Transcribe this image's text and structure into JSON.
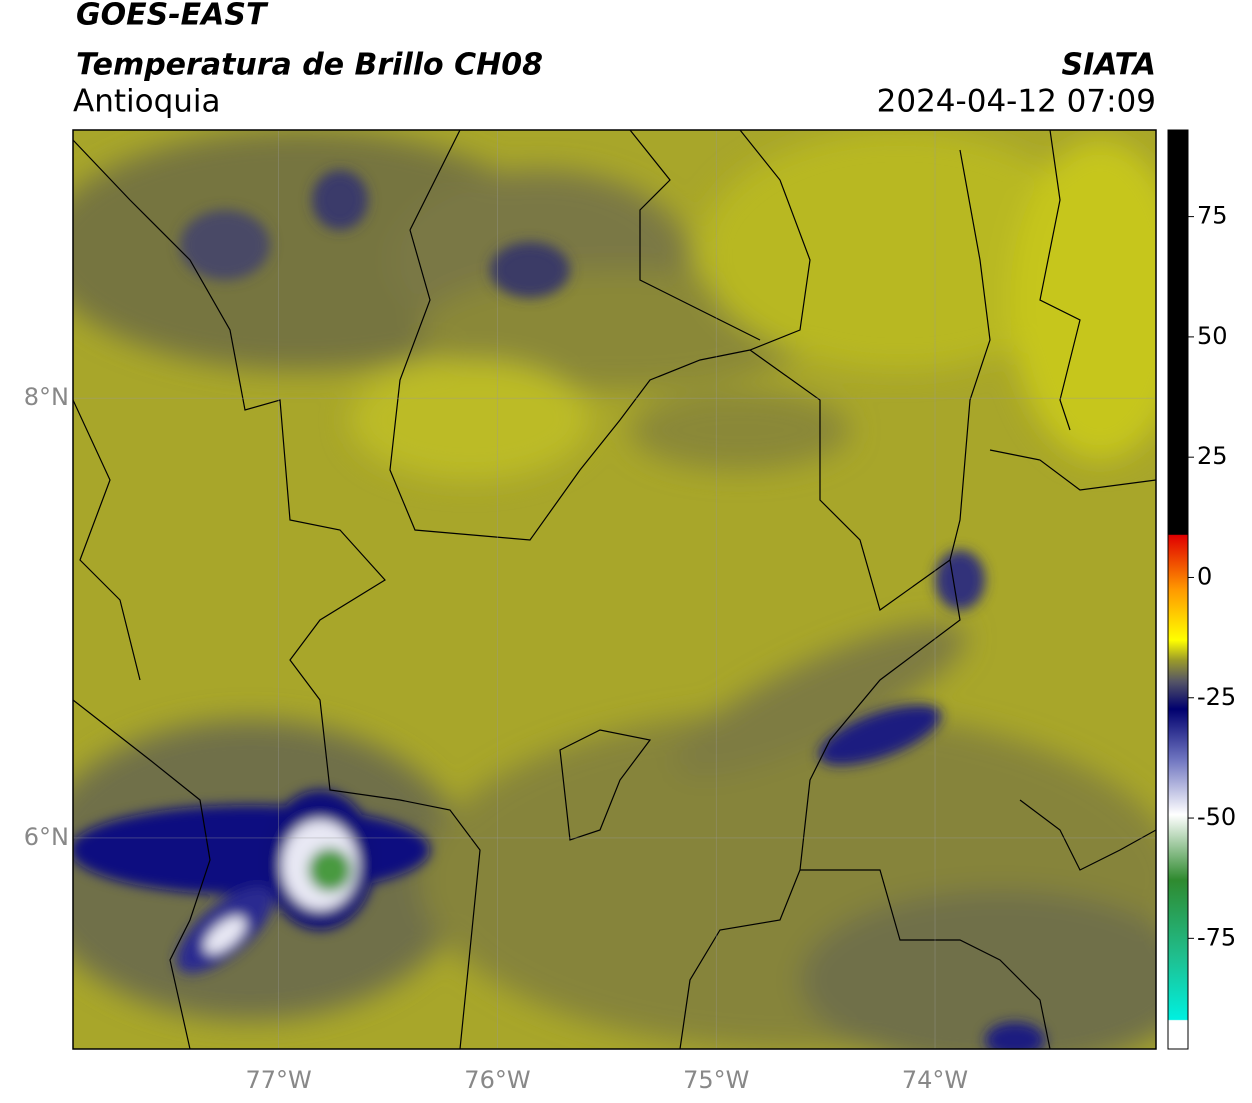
{
  "header": {
    "title": "GOES-EAST",
    "subtitle": "Temperatura de Brillo CH08",
    "region": "Antioquia",
    "source": "SIATA",
    "datetime": "2024-04-12 07:09"
  },
  "map": {
    "xlim": [
      -77.94,
      -72.99
    ],
    "ylim": [
      5.04,
      9.22
    ],
    "xticks": [
      {
        "value": -77,
        "label": "77°W"
      },
      {
        "value": -76,
        "label": "76°W"
      },
      {
        "value": -75,
        "label": "75°W"
      },
      {
        "value": -74,
        "label": "74°W"
      }
    ],
    "yticks": [
      {
        "value": 6,
        "label": "6°N"
      },
      {
        "value": 8,
        "label": "8°N"
      }
    ]
  },
  "colorbar": {
    "lim": [
      -98,
      93
    ],
    "ticks": [
      75,
      50,
      25,
      0,
      -25,
      -50,
      -75
    ]
  }
}
